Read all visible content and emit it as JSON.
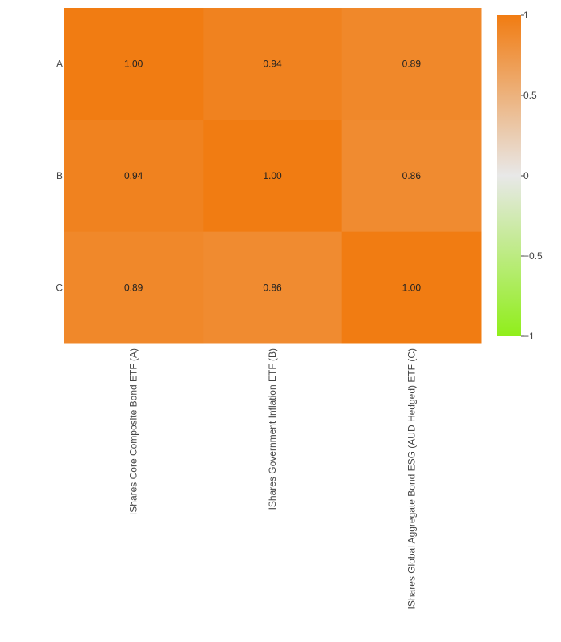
{
  "chart_data": {
    "type": "heatmap",
    "x_categories": [
      "IShares Core Composite Bond ETF (A)",
      "IShares Government Inflation ETF (B)",
      "IShares Global Aggregate Bond ESG (AUD Hedged) ETF (C)"
    ],
    "y_categories": [
      "A",
      "B",
      "C"
    ],
    "z": [
      [
        1.0,
        0.94,
        0.89
      ],
      [
        0.94,
        1.0,
        0.86
      ],
      [
        0.89,
        0.86,
        1.0
      ]
    ],
    "cell_labels": [
      [
        "1.00",
        "0.94",
        "0.89"
      ],
      [
        "0.94",
        "1.00",
        "0.86"
      ],
      [
        "0.89",
        "0.86",
        "1.00"
      ]
    ],
    "zlim": [
      -1,
      1
    ],
    "colorscale": [
      [
        0,
        "#90ee1a"
      ],
      [
        0.5,
        "#e8e8e8"
      ],
      [
        1,
        "#f17c12"
      ]
    ],
    "colorbar_ticks": [
      {
        "value": 1,
        "label": "1"
      },
      {
        "value": 0.5,
        "label": "0.5"
      },
      {
        "value": 0,
        "label": "0"
      },
      {
        "value": -0.5,
        "label": "−0.5"
      },
      {
        "value": -1,
        "label": "−1"
      }
    ],
    "title": "",
    "xlabel": "",
    "ylabel": ""
  }
}
